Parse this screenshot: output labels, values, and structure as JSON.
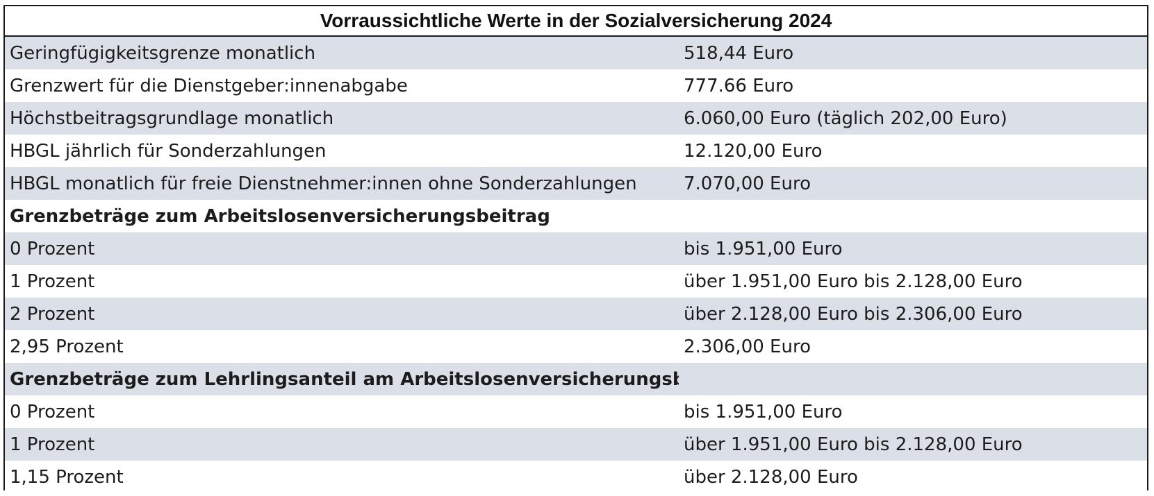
{
  "table": {
    "title": "Vorraussichtliche Werte in der Sozialversicherung 2024",
    "rows": [
      {
        "label": "Geringfügigkeitsgrenze monatlich",
        "value": "518,44 Euro",
        "section": false
      },
      {
        "label": "Grenzwert für die Dienstgeber:innenabgabe",
        "value": "777.66 Euro",
        "section": false
      },
      {
        "label": "Höchstbeitragsgrundlage monatlich",
        "value": "6.060,00 Euro (täglich 202,00 Euro)",
        "section": false
      },
      {
        "label": "HBGL jährlich für Sonderzahlungen",
        "value": "12.120,00 Euro",
        "section": false
      },
      {
        "label": "HBGL monatlich für freie Dienstnehmer:innen ohne Sonderzahlungen",
        "value": "7.070,00 Euro",
        "section": false
      },
      {
        "label": "Grenzbeträge zum Arbeitslosenversicherungsbeitrag",
        "value": "",
        "section": true
      },
      {
        "label": "0 Prozent",
        "value": "bis 1.951,00 Euro",
        "section": false
      },
      {
        "label": "1 Prozent",
        "value": "über 1.951,00 Euro bis 2.128,00 Euro",
        "section": false
      },
      {
        "label": "2 Prozent",
        "value": "über 2.128,00 Euro bis 2.306,00 Euro",
        "section": false
      },
      {
        "label": "2,95 Prozent",
        "value": "2.306,00 Euro",
        "section": false
      },
      {
        "label": "Grenzbeträge zum Lehrlingsanteil am Arbeitslosenversicherungsbeitrag",
        "value": "",
        "section": true
      },
      {
        "label": "0 Prozent",
        "value": "bis 1.951,00 Euro",
        "section": false
      },
      {
        "label": "1 Prozent",
        "value": "über 1.951,00 Euro bis 2.128,00 Euro",
        "section": false
      },
      {
        "label": "1,15 Prozent",
        "value": "über 2.128,00 Euro",
        "section": false
      }
    ]
  },
  "colors": {
    "shaded_row": "#dbe0e8",
    "plain_row": "#ffffff",
    "border": "#1a1a1a",
    "text": "#1c1c1c"
  }
}
